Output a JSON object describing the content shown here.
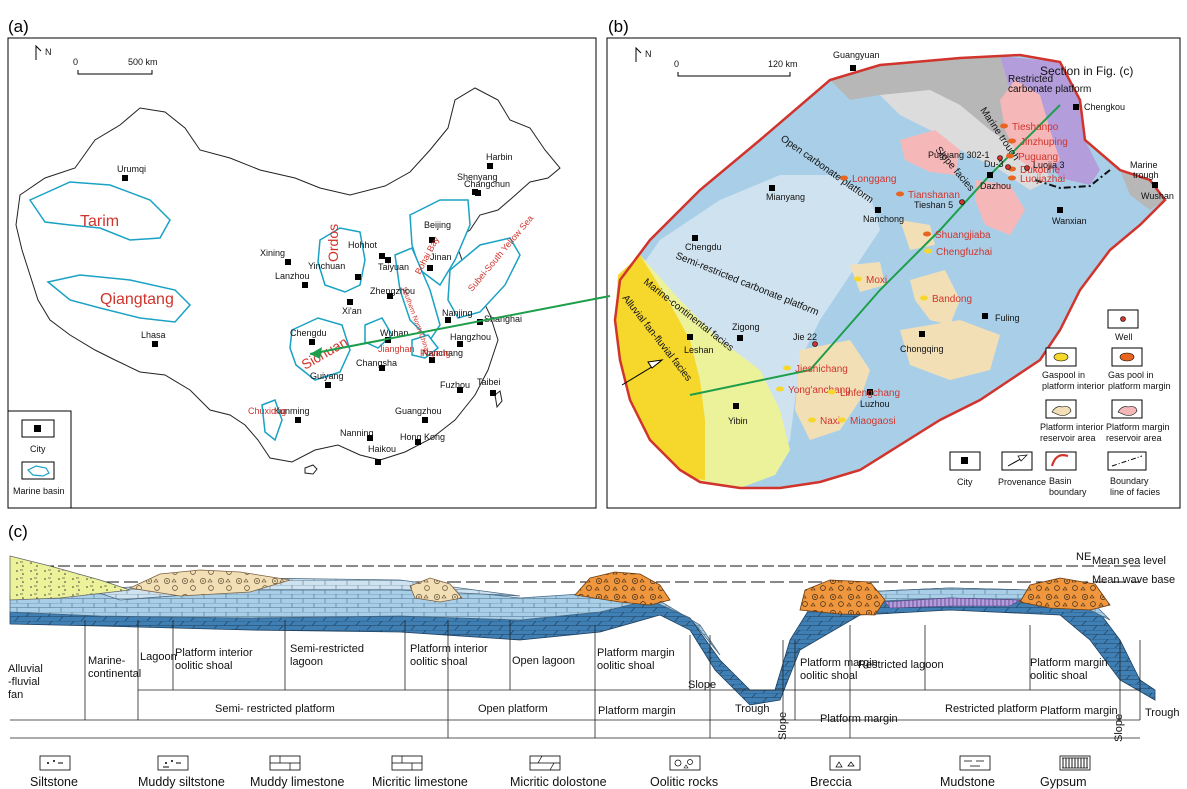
{
  "panel_labels": {
    "a": "(a)",
    "b": "(b)",
    "c": "(c)"
  },
  "map_a": {
    "north": "N",
    "scale": {
      "zero": "0",
      "end": "500 km"
    },
    "cities": [
      "Harbin",
      "Changchun",
      "Urumqi",
      "Shenyang",
      "Hohhot",
      "Beijing",
      "Yinchuan",
      "Taiyuan",
      "Jinan",
      "Xining",
      "Lanzhou",
      "Zhengzhou",
      "Xi'an",
      "Nanjing",
      "Shanghai",
      "Chengdu",
      "Wuhan",
      "Hangzhou",
      "Lhasa",
      "Nanchang",
      "Changsha",
      "Guiyang",
      "Fuzhou",
      "Taibei",
      "Kunming",
      "Guangzhou",
      "Nanning",
      "Hong Kong",
      "Haikou"
    ],
    "basins": [
      "Tarim",
      "Ordos",
      "Qiangtang",
      "Sichuan"
    ],
    "small_basins": [
      "Bohai Bay",
      "Subei-South Yellow Sea",
      "Southern North China",
      "Jianghan",
      "Poyang",
      "Chuxiong"
    ],
    "legend": {
      "city": "City",
      "marine_basin": "Marine basin"
    }
  },
  "map_b": {
    "north": "N",
    "scale": {
      "zero": "0",
      "end": "120 km"
    },
    "section_label": "Section in Fig. (c)",
    "cities": [
      "Guangyuan",
      "Chengkou",
      "Mianyang",
      "Dazhou",
      "Nanchong",
      "Wanxian",
      "Wushan",
      "Chengdu",
      "Leshan",
      "Zigong",
      "Chongqing",
      "Fuling",
      "Luzhou",
      "Yibin"
    ],
    "gas_fields": [
      "Tieshanpo",
      "Jinzhuping",
      "Puguang",
      "Dukouhe",
      "Luojiazhai",
      "Longgang",
      "Tianshanan",
      "Shuangjiaba",
      "Chengfuzhai",
      "Moxi",
      "Bandong",
      "Jieshichang",
      "Yong'anchang",
      "Linfengchang",
      "Naxi",
      "Miaogaosi"
    ],
    "wells": [
      "Puguang 302-1",
      "Du-3",
      "Luojia 3",
      "Tieshan 5",
      "Jie 22"
    ],
    "facies": [
      "Restricted carbonate platform",
      "Marine trough",
      "Slope facies",
      "Open carbonate platform",
      "Marine trough",
      "Semi-restricted carbonate platform",
      "Marine-continental facies",
      "Alluvial fan-fluvial facies"
    ],
    "legend": {
      "well": "Well",
      "gaspool_interior": "Gas pool in platform interior",
      "gaspool_margin": "Gas pool in platform margin",
      "reservoir_interior": "Platform interior reservoir area",
      "reservoir_margin": "Platform margin reservoir area",
      "city": "City",
      "provenance": "Provenance",
      "basin_boundary": "Basin boundary",
      "facies_boundary": "Boundary line of facies"
    }
  },
  "section_c": {
    "orientation": "NE",
    "sea_level": "Mean sea level",
    "wave_base": "Mean wave base",
    "subfacies": [
      "Alluvial -fluvial fan",
      "Marine- continental",
      "Lagoon",
      "Platform interior oolitic shoal",
      "Semi-restricted lagoon",
      "Platform interior oolitic shoal",
      "Open lagoon",
      "Platform margin oolitic shoal",
      "Slope",
      "Trough",
      "Slope",
      "Platform margin oolitic shoal",
      "Restricted lagoon",
      "Platform margin oolitic shoal",
      "Slope",
      "Trough"
    ],
    "facies": [
      "Semi- restricted platform",
      "Open platform",
      "Platform margin",
      "Platform margin",
      "Restricted platform",
      "Platform margin"
    ]
  },
  "lithology_legend": [
    "Siltstone",
    "Muddy siltstone",
    "Muddy limestone",
    "Micritic limestone",
    "Micritic dolostone",
    "Oolitic rocks",
    "Breccia",
    "Mudstone",
    "Gypsum"
  ],
  "colors": {
    "basin_outline": "#19a2c4",
    "red_label": "#d0342c",
    "green_line": "#1e9e4a",
    "basin_boundary": "#d0342c",
    "open_platform": "#a9cfe8",
    "semi_restricted": "#cfe2ef",
    "restricted": "#b39ddb",
    "trough": "#b7b7b7",
    "yellow": "#f5d82b",
    "light_yellow": "#ecf29a",
    "reservoir": "#f3dfb6",
    "margin_reservoir": "#f6b7b9"
  }
}
